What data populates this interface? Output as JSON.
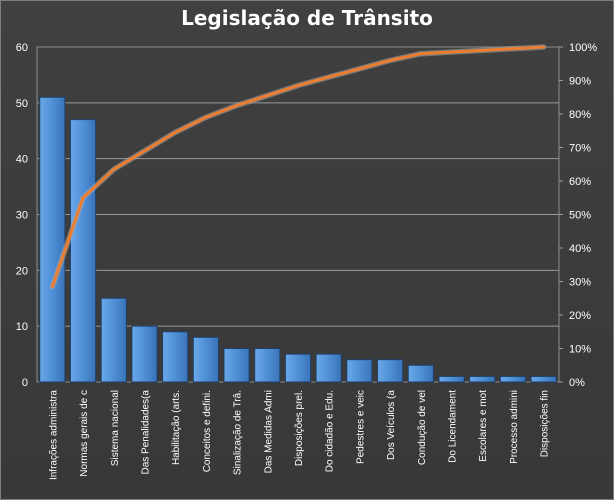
{
  "chart_data": {
    "type": "bar",
    "title": "Legislação  de Trânsito",
    "categories": [
      "Infrações administra",
      "Normas gerais de c",
      "Sistema nacional",
      "Das Penalidades(a",
      "Habilitação (arts.",
      "Conceitos e defini.",
      "Sinalização de Trâ.",
      "Das Medidas Admi",
      "Disposições prel.",
      "Do cidadão e Edu.",
      "Pedestres e veic",
      "Dos Veículos (a",
      "Condução de vel",
      "Do Licendament",
      "Escolares e mot",
      "Processo admini",
      "Disposições fin"
    ],
    "series": [
      {
        "type": "bar",
        "values": [
          51,
          47,
          15,
          10,
          9,
          8,
          6,
          6,
          5,
          5,
          4,
          4,
          3,
          1,
          1,
          1,
          1
        ]
      },
      {
        "type": "line",
        "axis": "right",
        "values": [
          28.5,
          55,
          63.5,
          69,
          74.5,
          79,
          82.5,
          85.5,
          88.5,
          91,
          93.5,
          96,
          98,
          98.5,
          99,
          99.5,
          100
        ]
      }
    ],
    "y_left": {
      "min": 0,
      "max": 60,
      "ticks": [
        "0",
        "10",
        "20",
        "30",
        "40",
        "50",
        "60"
      ]
    },
    "y_right": {
      "min": 0,
      "max": 100,
      "ticks": [
        "0%",
        "10%",
        "20%",
        "30%",
        "40%",
        "50%",
        "60%",
        "70%",
        "80%",
        "90%",
        "100%"
      ]
    },
    "grid": true,
    "bar_color": "#4f8fd6",
    "line_color": "#ed7d31",
    "line_shadow_color": "#a8a8a8"
  }
}
